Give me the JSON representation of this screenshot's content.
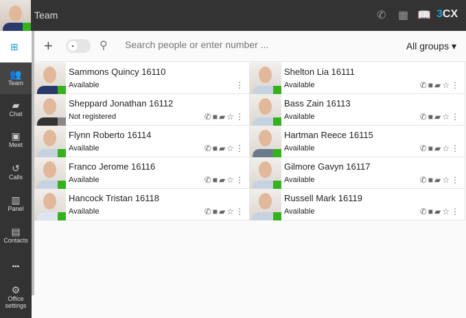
{
  "header": {
    "title": "Team",
    "logo": "3CX",
    "icons": [
      "phone-icon",
      "qr-code-icon",
      "book-icon"
    ]
  },
  "me": {
    "status_color": "#35b11d"
  },
  "nav": [
    {
      "label": "Team",
      "icon": "team-icon"
    },
    {
      "label": "Chat",
      "icon": "chat-icon"
    },
    {
      "label": "Meet",
      "icon": "meet-icon"
    },
    {
      "label": "Calls",
      "icon": "calls-icon"
    },
    {
      "label": "Panel",
      "icon": "panel-icon"
    },
    {
      "label": "Contacts",
      "icon": "contacts-icon"
    },
    {
      "label": "•••",
      "icon": "more-icon"
    },
    {
      "label": "Office settings",
      "icon": "gear-icon"
    }
  ],
  "toolbar": {
    "search_placeholder": "Search people or enter number ...",
    "groups": "All groups"
  },
  "contacts": [
    {
      "name": "Sammons Quincy 16110",
      "status": "Available",
      "color": "#35b11d",
      "self": true
    },
    {
      "name": "Shelton Lia 16111",
      "status": "Available",
      "color": "#35b11d"
    },
    {
      "name": "Sheppard Jonathan 16112",
      "status": "Not registered",
      "color": "#888888"
    },
    {
      "name": "Bass Zain 16113",
      "status": "Available",
      "color": "#35b11d"
    },
    {
      "name": "Flynn Roberto 16114",
      "status": "Available",
      "color": "#35b11d"
    },
    {
      "name": "Hartman Reece 16115",
      "status": "Available",
      "color": "#35b11d"
    },
    {
      "name": "Franco Jerome 16116",
      "status": "Available",
      "color": "#35b11d"
    },
    {
      "name": "Gilmore Gavyn 16117",
      "status": "Available",
      "color": "#35b11d"
    },
    {
      "name": "Hancock Tristan 16118",
      "status": "Available",
      "color": "#35b11d"
    },
    {
      "name": "Russell Mark 16119",
      "status": "Available",
      "color": "#35b11d"
    }
  ]
}
